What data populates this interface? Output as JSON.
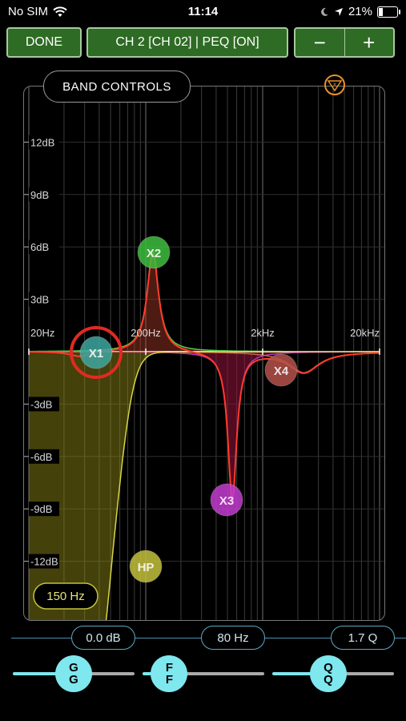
{
  "status": {
    "carrier": "No SIM",
    "time": "11:14",
    "battery": "21%",
    "battery_level": 0.21
  },
  "toolbar": {
    "done": "DONE",
    "channel": "CH 2 [CH 02] | PEQ [ON]",
    "minus": "−",
    "plus": "+"
  },
  "band_controls_label": "BAND CONTROLS",
  "eq": {
    "db_labels": [
      "12dB",
      "9dB",
      "6dB",
      "3dB",
      "-3dB",
      "-6dB",
      "-9dB",
      "-12dB"
    ],
    "freq_labels": [
      "20Hz",
      "200Hz",
      "2kHz",
      "20kHz"
    ],
    "nodes": [
      {
        "id": "X1",
        "color": "#3fa6a0"
      },
      {
        "id": "X2",
        "color": "#3fbf3f"
      },
      {
        "id": "X3",
        "color": "#c43cd1"
      },
      {
        "id": "X4",
        "color": "#b5524a"
      },
      {
        "id": "HP",
        "color": "#c4c13b"
      }
    ],
    "hp_freq": "150 Hz"
  },
  "readouts": {
    "gain": "0.0 dB",
    "freq": "80 Hz",
    "q": "1.7 Q"
  },
  "sliders": {
    "gain": {
      "label_top": "G",
      "label_bottom": "G",
      "level": 0.5
    },
    "freq": {
      "label_top": "F",
      "label_bottom": "F",
      "level": 0.22
    },
    "q": {
      "label_top": "Q",
      "label_bottom": "Q",
      "level": 0.46
    }
  }
}
